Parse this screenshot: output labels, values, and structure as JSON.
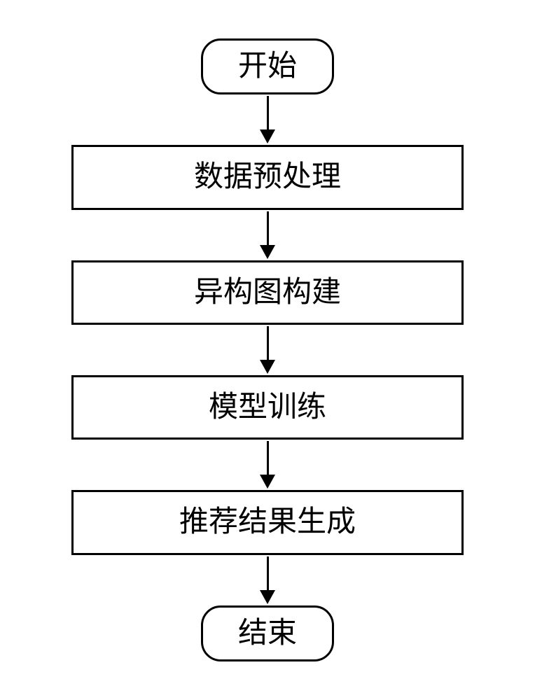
{
  "flowchart": {
    "type": "flowchart",
    "background_color": "#ffffff",
    "border_color": "#000000",
    "border_width": 3,
    "text_color": "#000000",
    "font_size": 42,
    "font_family": "SimSun",
    "terminal_border_radius": 28,
    "process_width": 560,
    "arrow_line_length": 48,
    "arrow_line_width": 3,
    "arrow_head_width": 22,
    "arrow_head_height": 20,
    "nodes": {
      "start": {
        "type": "terminal",
        "label": "开始"
      },
      "step1": {
        "type": "process",
        "label": "数据预处理"
      },
      "step2": {
        "type": "process",
        "label": "异构图构建"
      },
      "step3": {
        "type": "process",
        "label": "模型训练"
      },
      "step4": {
        "type": "process",
        "label": "推荐结果生成"
      },
      "end": {
        "type": "terminal",
        "label": "结束"
      }
    },
    "edges": [
      {
        "from": "start",
        "to": "step1"
      },
      {
        "from": "step1",
        "to": "step2"
      },
      {
        "from": "step2",
        "to": "step3"
      },
      {
        "from": "step3",
        "to": "step4"
      },
      {
        "from": "step4",
        "to": "end"
      }
    ]
  }
}
